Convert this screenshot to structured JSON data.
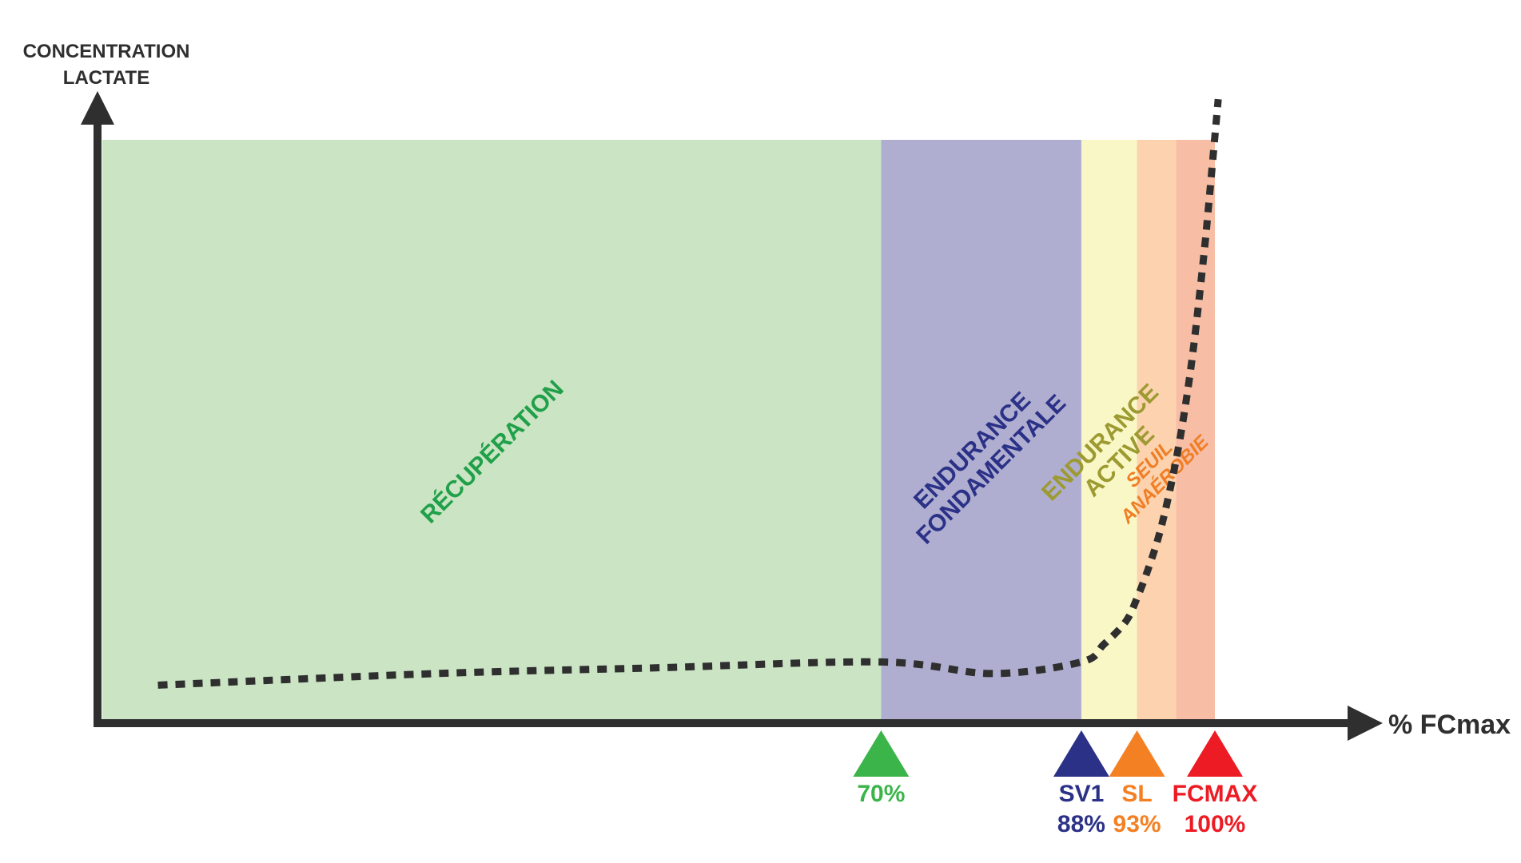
{
  "chart_data": {
    "type": "area",
    "title": "",
    "ylabel": [
      "CONCENTRATION",
      "LACTATE"
    ],
    "xlabel": "% FCmax",
    "zones": [
      {
        "name": "zone-recuperation",
        "label": [
          "RÉCUPÉRATION"
        ],
        "from": 0,
        "to": 70,
        "fill": "#cae4c4",
        "text_color": "#21a04a",
        "italic": false
      },
      {
        "name": "zone-endurance-fondamentale",
        "label": [
          "ENDURANCE",
          "FONDAMENTALE"
        ],
        "from": 70,
        "to": 88,
        "fill": "#afaed0",
        "text_color": "#2b3187",
        "italic": false
      },
      {
        "name": "zone-endurance-active",
        "label": [
          "ENDURANCE",
          "ACTIVE"
        ],
        "from": 88,
        "to": 93,
        "fill": "#f9f7c6",
        "text_color": "#9c9a31",
        "italic": false
      },
      {
        "name": "zone-seuil-anaerobie",
        "label": [
          "SEUIL",
          "ANAÉROBIE"
        ],
        "from": 93,
        "to": 96.5,
        "fill": "#fcd3ae",
        "text_color": "#f07e26",
        "italic": true
      },
      {
        "name": "zone-max",
        "label": [],
        "from": 96.5,
        "to": 100,
        "fill": "#f8bea5",
        "text_color": "#e53a2f",
        "italic": false
      }
    ],
    "markers": [
      {
        "name": "marker-70",
        "x": 70,
        "lines": [
          "70%"
        ],
        "color": "#3bb54a"
      },
      {
        "name": "marker-sv1",
        "x": 88,
        "lines": [
          "SV1",
          "88%"
        ],
        "color": "#2b3187"
      },
      {
        "name": "marker-sl",
        "x": 93,
        "lines": [
          "SL",
          "93%"
        ],
        "color": "#f48024"
      },
      {
        "name": "marker-fcmax",
        "x": 100,
        "lines": [
          "FCMAX",
          "100%"
        ],
        "color": "#ed1c24"
      }
    ],
    "lactate_curve": {
      "x": [
        5,
        30,
        50,
        70,
        80,
        88,
        90,
        92,
        93,
        94,
        95,
        96,
        97,
        98,
        99,
        99.5,
        100.3
      ],
      "y": [
        0.06,
        0.08,
        0.09,
        0.1,
        0.08,
        0.1,
        0.13,
        0.17,
        0.21,
        0.26,
        0.32,
        0.4,
        0.5,
        0.63,
        0.8,
        0.9,
        1.07
      ]
    },
    "xlim": [
      0,
      100
    ],
    "ylim": [
      0,
      1
    ],
    "grid": false,
    "legend": "none",
    "colors": {
      "axis": "#2f2f2f",
      "curve": "#2f2f2f"
    }
  }
}
